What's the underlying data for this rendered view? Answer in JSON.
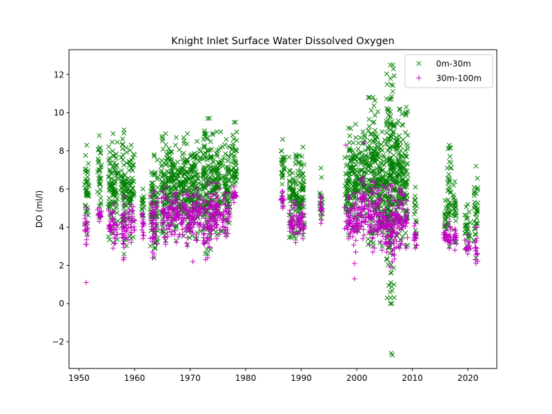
{
  "chart_data": {
    "type": "scatter",
    "title": "Knight Inlet Surface Water Dissolved Oxygen",
    "xlabel": "",
    "ylabel": "DO (ml/l)",
    "xlim": [
      1948.2,
      2025.2
    ],
    "ylim": [
      -3.4,
      13.3
    ],
    "x_ticks": [
      1950,
      1960,
      1970,
      1980,
      1990,
      2000,
      2010,
      2020
    ],
    "y_ticks": [
      -2,
      0,
      2,
      4,
      6,
      8,
      10,
      12
    ],
    "y_tick_labels": [
      "−2",
      "0",
      "2",
      "4",
      "6",
      "8",
      "10",
      "12"
    ],
    "grid": false,
    "legend_position": "top-right",
    "series": [
      {
        "name": "0m-30m",
        "marker": "x",
        "color": "#008000",
        "clusters": [
          {
            "x": [
              1951.0,
              1951.8
            ],
            "y": [
              3.6,
              8.3
            ]
          },
          {
            "x": [
              1953.3,
              1954.0
            ],
            "y": [
              4.5,
              8.8
            ]
          },
          {
            "x": [
              1955.3,
              1957.0
            ],
            "y": [
              3.2,
              8.9
            ]
          },
          {
            "x": [
              1957.6,
              1958.6
            ],
            "y": [
              2.6,
              9.1
            ]
          },
          {
            "x": [
              1958.8,
              1960.0
            ],
            "y": [
              3.4,
              8.3
            ]
          },
          {
            "x": [
              1961.3,
              1961.7
            ],
            "y": [
              4.6,
              6.0
            ]
          },
          {
            "x": [
              1962.8,
              1964.2
            ],
            "y": [
              2.4,
              7.8
            ]
          },
          {
            "x": [
              1964.8,
              1966.4
            ],
            "y": [
              3.3,
              8.9
            ]
          },
          {
            "x": [
              1966.5,
              1968.5
            ],
            "y": [
              3.3,
              8.7
            ]
          },
          {
            "x": [
              1968.5,
              1970.5
            ],
            "y": [
              3.1,
              8.9
            ]
          },
          {
            "x": [
              1970.5,
              1972.0
            ],
            "y": [
              3.4,
              8.5
            ]
          },
          {
            "x": [
              1972.3,
              1974.0
            ],
            "y": [
              2.6,
              9.7
            ]
          },
          {
            "x": [
              1974.0,
              1975.6
            ],
            "y": [
              3.6,
              9.0
            ]
          },
          {
            "x": [
              1975.8,
              1977.2
            ],
            "y": [
              3.6,
              8.6
            ]
          },
          {
            "x": [
              1977.4,
              1978.4
            ],
            "y": [
              5.6,
              9.5
            ]
          },
          {
            "x": [
              1986.3,
              1987.0
            ],
            "y": [
              5.3,
              8.6
            ]
          },
          {
            "x": [
              1987.8,
              1990.2
            ],
            "y": [
              3.4,
              7.8
            ]
          },
          {
            "x": [
              1990.0,
              1990.6
            ],
            "y": [
              3.6,
              8.2
            ]
          },
          {
            "x": [
              1993.3,
              1993.8
            ],
            "y": [
              4.5,
              7.1
            ]
          },
          {
            "x": [
              1997.8,
              1999.2
            ],
            "y": [
              3.6,
              9.2
            ]
          },
          {
            "x": [
              1999.2,
              2000.4
            ],
            "y": [
              3.8,
              9.4
            ]
          },
          {
            "x": [
              2000.4,
              2001.8
            ],
            "y": [
              4.6,
              9.0
            ]
          },
          {
            "x": [
              2002.0,
              2003.8
            ],
            "y": [
              3.0,
              10.8
            ]
          },
          {
            "x": [
              2003.8,
              2005.3
            ],
            "y": [
              3.0,
              9.0
            ]
          },
          {
            "x": [
              2005.3,
              2006.8
            ],
            "y": [
              0.0,
              12.5
            ]
          },
          {
            "x": [
              2006.8,
              2008.6
            ],
            "y": [
              3.0,
              10.2
            ]
          },
          {
            "x": [
              2008.6,
              2009.2
            ],
            "y": [
              3.0,
              10.3
            ]
          },
          {
            "x": [
              2010.3,
              2010.8
            ],
            "y": [
              3.0,
              6.1
            ]
          },
          {
            "x": [
              2015.6,
              2016.2
            ],
            "y": [
              3.5,
              5.4
            ]
          },
          {
            "x": [
              2016.3,
              2017.0
            ],
            "y": [
              3.0,
              8.3
            ]
          },
          {
            "x": [
              2017.3,
              2018.0
            ],
            "y": [
              3.2,
              6.4
            ]
          },
          {
            "x": [
              2019.4,
              2020.5
            ],
            "y": [
              2.8,
              5.2
            ]
          },
          {
            "x": [
              2021.1,
              2021.8
            ],
            "y": [
              2.4,
              7.2
            ]
          }
        ],
        "points": [
          [
            2006.5,
            12.5
          ],
          [
            2006.6,
            12.3
          ],
          [
            2006.2,
            1.6
          ],
          [
            2006.1,
            1.1
          ],
          [
            2006.7,
            1.0
          ],
          [
            2006.0,
            0.6
          ],
          [
            2006.3,
            0.0
          ],
          [
            2006.2,
            -2.6
          ],
          [
            2006.4,
            -2.7
          ],
          [
            2002.3,
            10.8
          ],
          [
            1973.5,
            9.7
          ],
          [
            1978.2,
            9.5
          ]
        ]
      },
      {
        "name": "30m-100m",
        "marker": "+",
        "color": "#bf00bf",
        "clusters": [
          {
            "x": [
              1951.0,
              1951.8
            ],
            "y": [
              3.1,
              5.0
            ]
          },
          {
            "x": [
              1953.3,
              1954.0
            ],
            "y": [
              4.3,
              5.0
            ]
          },
          {
            "x": [
              1955.3,
              1957.0
            ],
            "y": [
              2.9,
              5.2
            ]
          },
          {
            "x": [
              1957.6,
              1958.6
            ],
            "y": [
              2.4,
              5.6
            ]
          },
          {
            "x": [
              1958.8,
              1960.0
            ],
            "y": [
              3.2,
              5.2
            ]
          },
          {
            "x": [
              1961.3,
              1961.7
            ],
            "y": [
              3.4,
              4.7
            ]
          },
          {
            "x": [
              1962.8,
              1964.2
            ],
            "y": [
              2.6,
              5.9
            ]
          },
          {
            "x": [
              1964.8,
              1966.4
            ],
            "y": [
              3.1,
              6.1
            ]
          },
          {
            "x": [
              1966.5,
              1968.5
            ],
            "y": [
              3.2,
              5.8
            ]
          },
          {
            "x": [
              1968.5,
              1970.5
            ],
            "y": [
              3.0,
              5.9
            ]
          },
          {
            "x": [
              1970.5,
              1972.0
            ],
            "y": [
              3.3,
              6.0
            ]
          },
          {
            "x": [
              1972.3,
              1974.0
            ],
            "y": [
              2.4,
              6.4
            ]
          },
          {
            "x": [
              1974.0,
              1975.6
            ],
            "y": [
              3.4,
              6.3
            ]
          },
          {
            "x": [
              1975.8,
              1977.2
            ],
            "y": [
              3.5,
              5.8
            ]
          },
          {
            "x": [
              1977.4,
              1978.4
            ],
            "y": [
              5.3,
              6.1
            ]
          },
          {
            "x": [
              1986.3,
              1987.0
            ],
            "y": [
              5.0,
              5.9
            ]
          },
          {
            "x": [
              1987.8,
              1990.2
            ],
            "y": [
              3.2,
              5.4
            ]
          },
          {
            "x": [
              1990.0,
              1990.6
            ],
            "y": [
              3.4,
              5.2
            ]
          },
          {
            "x": [
              1993.3,
              1993.8
            ],
            "y": [
              4.2,
              5.6
            ]
          },
          {
            "x": [
              1997.8,
              1999.2
            ],
            "y": [
              3.4,
              5.6
            ]
          },
          {
            "x": [
              1999.2,
              2000.4
            ],
            "y": [
              2.7,
              5.8
            ]
          },
          {
            "x": [
              2000.4,
              2001.8
            ],
            "y": [
              3.4,
              6.6
            ]
          },
          {
            "x": [
              2002.0,
              2003.8
            ],
            "y": [
              2.7,
              6.4
            ]
          },
          {
            "x": [
              2003.8,
              2005.3
            ],
            "y": [
              2.8,
              6.2
            ]
          },
          {
            "x": [
              2005.3,
              2006.8
            ],
            "y": [
              1.9,
              6.2
            ]
          },
          {
            "x": [
              2006.8,
              2008.6
            ],
            "y": [
              2.9,
              6.0
            ]
          },
          {
            "x": [
              2008.6,
              2009.2
            ],
            "y": [
              2.9,
              5.4
            ]
          },
          {
            "x": [
              2010.3,
              2010.8
            ],
            "y": [
              2.9,
              4.2
            ]
          },
          {
            "x": [
              2015.6,
              2016.2
            ],
            "y": [
              3.3,
              4.1
            ]
          },
          {
            "x": [
              2016.3,
              2017.0
            ],
            "y": [
              2.9,
              4.3
            ]
          },
          {
            "x": [
              2017.3,
              2018.0
            ],
            "y": [
              2.8,
              3.9
            ]
          },
          {
            "x": [
              2019.4,
              2020.5
            ],
            "y": [
              2.6,
              3.6
            ]
          },
          {
            "x": [
              2021.1,
              2021.8
            ],
            "y": [
              2.1,
              4.0
            ]
          }
        ],
        "points": [
          [
            1951.3,
            1.1
          ],
          [
            1951.2,
            3.1
          ],
          [
            1958.0,
            2.3
          ],
          [
            1963.3,
            2.4
          ],
          [
            1970.5,
            2.2
          ],
          [
            1972.8,
            2.3
          ],
          [
            1998.0,
            8.3
          ],
          [
            1999.6,
            2.1
          ],
          [
            1999.6,
            1.3
          ],
          [
            2001.3,
            8.4
          ]
        ]
      }
    ]
  }
}
